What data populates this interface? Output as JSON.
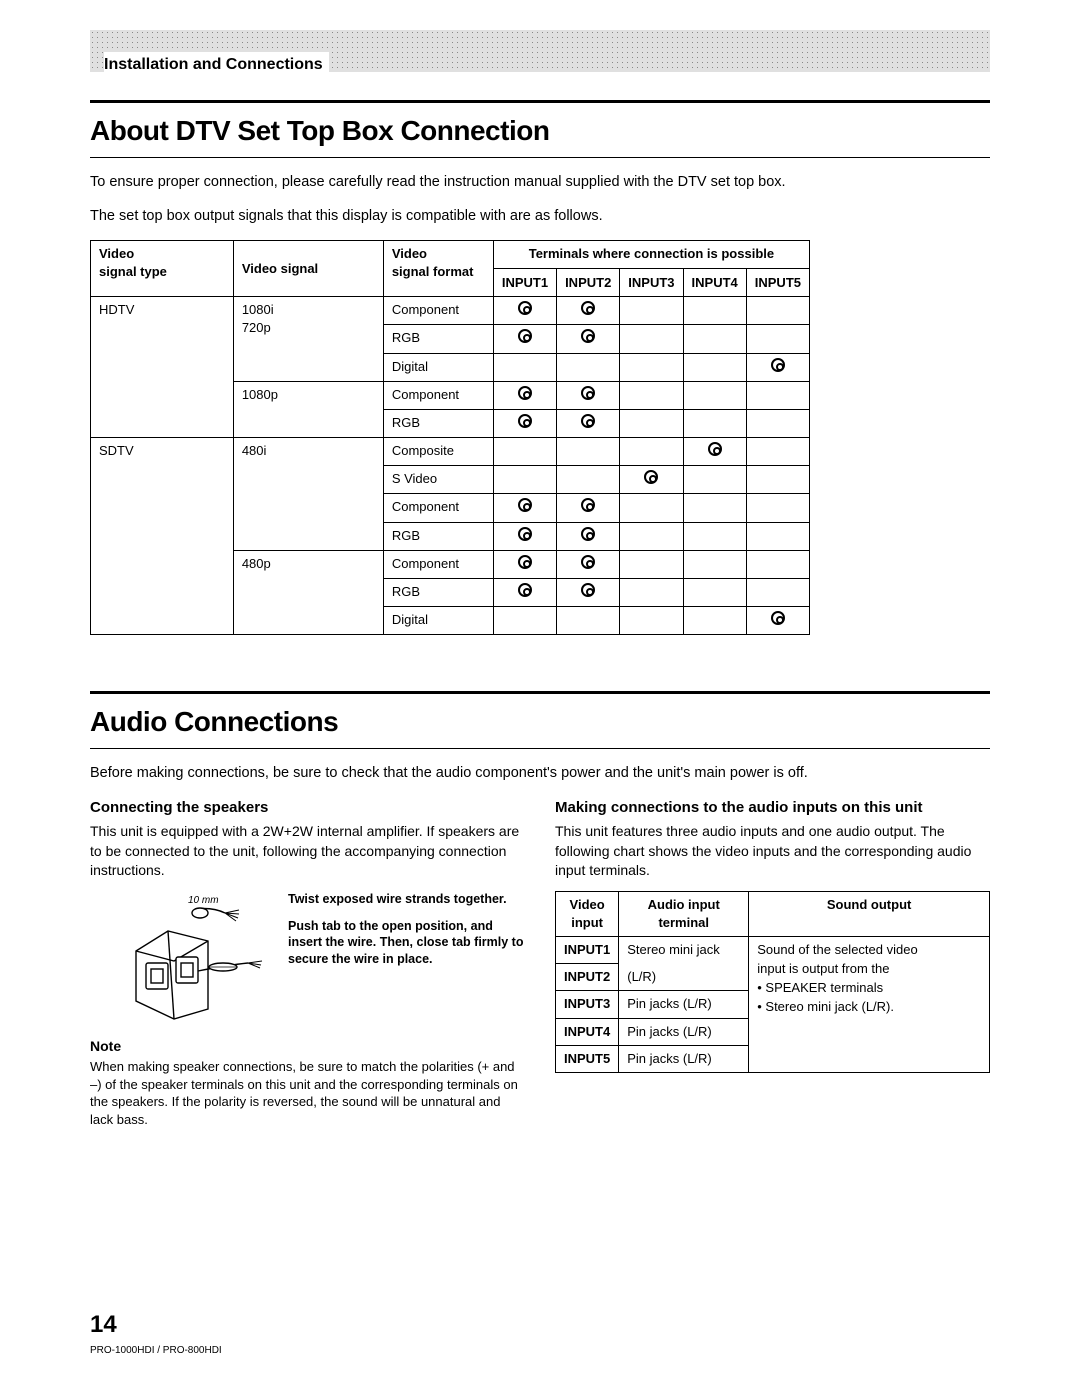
{
  "header": {
    "section_label": "Installation and Connections"
  },
  "section1": {
    "title": "About DTV Set Top Box Connection",
    "p1": "To ensure proper connection, please carefully read the instruction manual supplied with the DTV set top box.",
    "p2": "The set top box output signals that this display is compatible with are as follows."
  },
  "compat_table": {
    "headers": {
      "col1a": "Video",
      "col1b": "signal type",
      "col2": "Video signal",
      "col3a": "Video",
      "col3b": "signal format",
      "term_span": "Terminals where connection is possible",
      "inputs": [
        "INPUT1",
        "INPUT2",
        "INPUT3",
        "INPUT4",
        "INPUT5"
      ]
    },
    "rows": [
      {
        "type": "HDTV",
        "signal": "1080i\n720p",
        "format": "Component",
        "marks": [
          1,
          1,
          0,
          0,
          0
        ],
        "type_rowspan": 5,
        "signal_rowspan": 3
      },
      {
        "type": "",
        "signal": "",
        "format": "RGB",
        "marks": [
          1,
          1,
          0,
          0,
          0
        ]
      },
      {
        "type": "",
        "signal": "",
        "format": "Digital",
        "marks": [
          0,
          0,
          0,
          0,
          1
        ]
      },
      {
        "type": "",
        "signal": "1080p",
        "format": "Component",
        "marks": [
          1,
          1,
          0,
          0,
          0
        ],
        "signal_rowspan": 2
      },
      {
        "type": "",
        "signal": "",
        "format": "RGB",
        "marks": [
          1,
          1,
          0,
          0,
          0
        ]
      },
      {
        "type": "SDTV",
        "signal": "480i",
        "format": "Composite",
        "marks": [
          0,
          0,
          0,
          1,
          0
        ],
        "type_rowspan": 7,
        "signal_rowspan": 4
      },
      {
        "type": "",
        "signal": "",
        "format": "S Video",
        "marks": [
          0,
          0,
          1,
          0,
          0
        ]
      },
      {
        "type": "",
        "signal": "",
        "format": "Component",
        "marks": [
          1,
          1,
          0,
          0,
          0
        ]
      },
      {
        "type": "",
        "signal": "",
        "format": "RGB",
        "marks": [
          1,
          1,
          0,
          0,
          0
        ]
      },
      {
        "type": "",
        "signal": "480p",
        "format": "Component",
        "marks": [
          1,
          1,
          0,
          0,
          0
        ],
        "signal_rowspan": 3
      },
      {
        "type": "",
        "signal": "",
        "format": "RGB",
        "marks": [
          1,
          1,
          0,
          0,
          0
        ]
      },
      {
        "type": "",
        "signal": "",
        "format": "Digital",
        "marks": [
          0,
          0,
          0,
          0,
          1
        ]
      }
    ]
  },
  "section2": {
    "title": "Audio Connections",
    "p1": "Before making connections, be sure to check that the audio component's power and the unit's main power is off."
  },
  "left_col": {
    "sub": "Connecting the speakers",
    "p": "This unit is equipped with a 2W+2W internal amplifier. If speakers are to be connected to the unit, following the accompanying connection instructions.",
    "fig_label_10mm": "10 mm",
    "instr1": "Twist exposed wire strands together.",
    "instr2": "Push tab to the open position, and insert the wire. Then, close tab firmly to secure the wire in place.",
    "note_label": "Note",
    "note_text": "When making speaker connections, be sure to match the polarities (+ and –) of the speaker terminals on this unit and the corresponding terminals on the speakers. If the polarity is reversed, the sound will be unnatural and lack bass."
  },
  "right_col": {
    "sub": "Making connections to the audio inputs on this unit",
    "p": "This unit features three audio inputs and one audio output. The following chart shows the video inputs and the corresponding audio input terminals."
  },
  "audio_table": {
    "headers": {
      "c1a": "Video",
      "c1b": "input",
      "c2a": "Audio input",
      "c2b": "terminal",
      "c3": "Sound output"
    },
    "rows": [
      {
        "in": "INPUT1",
        "term": "Stereo mini jack"
      },
      {
        "in": "INPUT2",
        "term": "(L/R)"
      },
      {
        "in": "INPUT3",
        "term": "Pin jacks (L/R)"
      },
      {
        "in": "INPUT4",
        "term": "Pin jacks (L/R)"
      },
      {
        "in": "INPUT5",
        "term": "Pin jacks (L/R)"
      }
    ],
    "sound_output_lines": [
      "Sound of the selected video",
      "input is output from the",
      "• SPEAKER terminals",
      "• Stereo mini jack (L/R)."
    ]
  },
  "footer": {
    "page": "14",
    "model": "PRO-1000HDI / PRO-800HDI"
  }
}
